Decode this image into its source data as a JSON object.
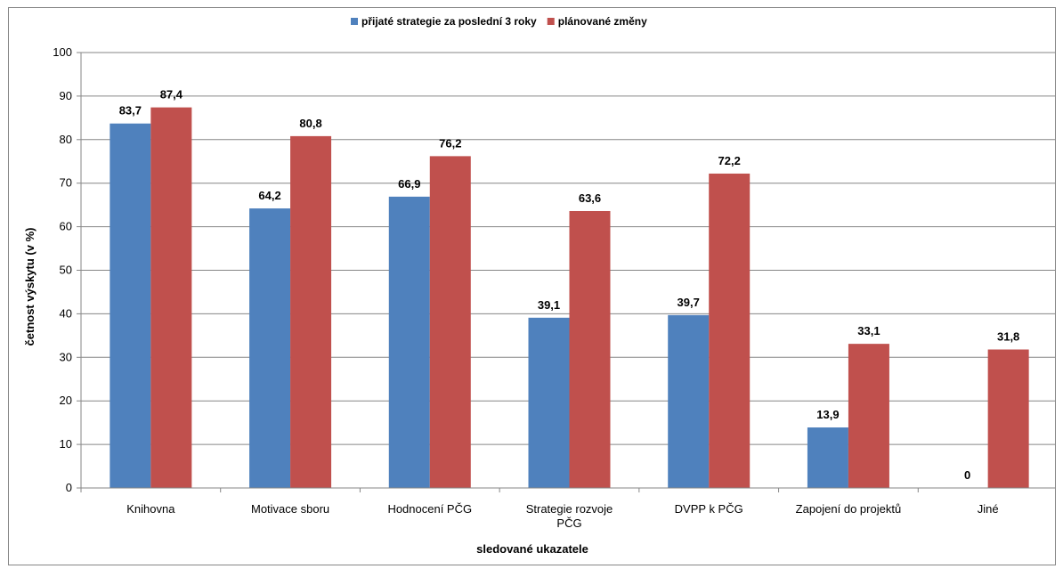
{
  "chart_data": {
    "type": "bar",
    "title": "",
    "xlabel": "sledované ukazatele",
    "ylabel": "četnost výskytu (v %)",
    "ylim": [
      0,
      100
    ],
    "ytick_step": 10,
    "grid": true,
    "legend_position": "top",
    "categories": [
      [
        "Knihovna"
      ],
      [
        "Motivace sboru"
      ],
      [
        "Hodnocení PČG"
      ],
      [
        "Strategie rozvoje",
        "PČG"
      ],
      [
        "DVPP k PČG"
      ],
      [
        "Zapojení do projektů"
      ],
      [
        "Jiné"
      ]
    ],
    "series": [
      {
        "name": "přijaté strategie za poslední 3 roky",
        "color": "#4f81bd",
        "values": [
          83.7,
          64.2,
          66.9,
          39.1,
          39.7,
          13.9,
          0
        ],
        "labels": [
          "83,7",
          "64,2",
          "66,9",
          "39,1",
          "39,7",
          "13,9",
          "0"
        ]
      },
      {
        "name": "plánované změny",
        "color": "#c0504d",
        "values": [
          87.4,
          80.8,
          76.2,
          63.6,
          72.2,
          33.1,
          31.8
        ],
        "labels": [
          "87,4",
          "80,8",
          "76,2",
          "63,6",
          "72,2",
          "33,1",
          "31,8"
        ]
      }
    ]
  }
}
